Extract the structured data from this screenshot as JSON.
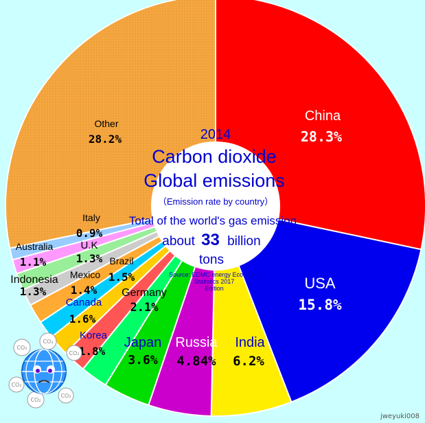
{
  "chart_data": {
    "type": "pie",
    "subtype": "donut",
    "title_year": "2014",
    "title_line1": "Carbon dioxide",
    "title_line2": "Global emissions",
    "subtitle": "（Emission rate by country）",
    "total_line1": "Total of the world's gas emission",
    "total_line2_pre": "about",
    "total_line2_num": "33",
    "total_line2_post": "billion",
    "total_line3": "tons",
    "source_line1": "Source: EDMC energy Economic",
    "source_line2": "Statistics 2017",
    "source_line3": "Edition",
    "slices": [
      {
        "name": "China",
        "value": 28.3,
        "label": "28.3%",
        "color": "#ff0000"
      },
      {
        "name": "USA",
        "value": 15.8,
        "label": "15.8%",
        "color": "#0000ee"
      },
      {
        "name": "India",
        "value": 6.2,
        "label": "6.2%",
        "color": "#ffee00"
      },
      {
        "name": "Russia",
        "value": 4.84,
        "label": "4.84%",
        "color": "#cc00cc"
      },
      {
        "name": "Japan",
        "value": 3.6,
        "label": "3.6%",
        "color": "#00dd00"
      },
      {
        "name": "Germany",
        "value": 2.1,
        "label": "2.1%",
        "color": "#00ff66"
      },
      {
        "name": "Korea",
        "value": 1.8,
        "label": "1.8%",
        "color": "#ff5555"
      },
      {
        "name": "Canada",
        "value": 1.6,
        "label": "1.6%",
        "color": "#ffcc00"
      },
      {
        "name": "Mexico",
        "value": 1.4,
        "label": "1.4%",
        "color": "#00ccff"
      },
      {
        "name": "Brazil",
        "value": 1.5,
        "label": "1.5%",
        "color": "#ffaa33"
      },
      {
        "name": "Indonesia",
        "value": 1.3,
        "label": "1.3%",
        "color": "#cccccc"
      },
      {
        "name": "U.K",
        "value": 1.3,
        "label": "1.3%",
        "color": "#99ee99"
      },
      {
        "name": "Australia",
        "value": 1.1,
        "label": "1.1%",
        "color": "#ff99ff"
      },
      {
        "name": "Italy",
        "value": 0.9,
        "label": "0.9%",
        "color": "#99ccff"
      },
      {
        "name": "Other",
        "value": 28.2,
        "label": "28.2%",
        "color": "#f4a640"
      }
    ]
  },
  "credit": "jweyuki008",
  "icon": "earth-co2-icon"
}
